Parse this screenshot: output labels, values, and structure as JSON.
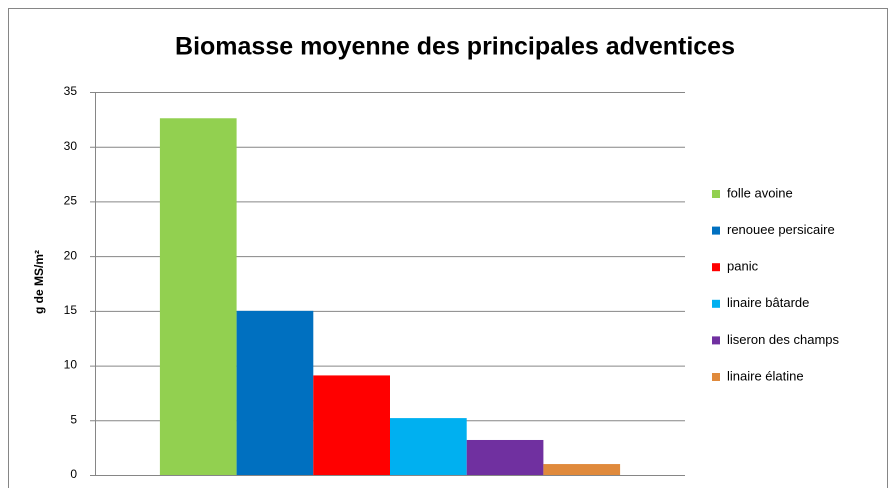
{
  "chart_data": {
    "type": "bar",
    "title": "Biomasse moyenne des principales adventices",
    "y_label": "g de MS/m²",
    "categories": [
      null
    ],
    "series": [
      {
        "name": "folle avoine",
        "color": "#92d050",
        "values": [
          32.6
        ]
      },
      {
        "name": "renouee persicaire",
        "color": "#0070c0",
        "values": [
          15
        ]
      },
      {
        "name": "panic",
        "color": "#ff0000",
        "values": [
          9.1
        ]
      },
      {
        "name": "linaire bâtarde",
        "color": "#00b0f0",
        "values": [
          5.2
        ]
      },
      {
        "name": "liseron des champs",
        "color": "#7030a0",
        "values": [
          3.2
        ]
      },
      {
        "name": "linaire élatine",
        "color": "#e08a3c",
        "values": [
          1
        ]
      }
    ],
    "ylim": [
      0,
      35
    ],
    "yticks": [
      0,
      5,
      10,
      15,
      20,
      25,
      30,
      35
    ],
    "grid": true,
    "legend": "right"
  }
}
